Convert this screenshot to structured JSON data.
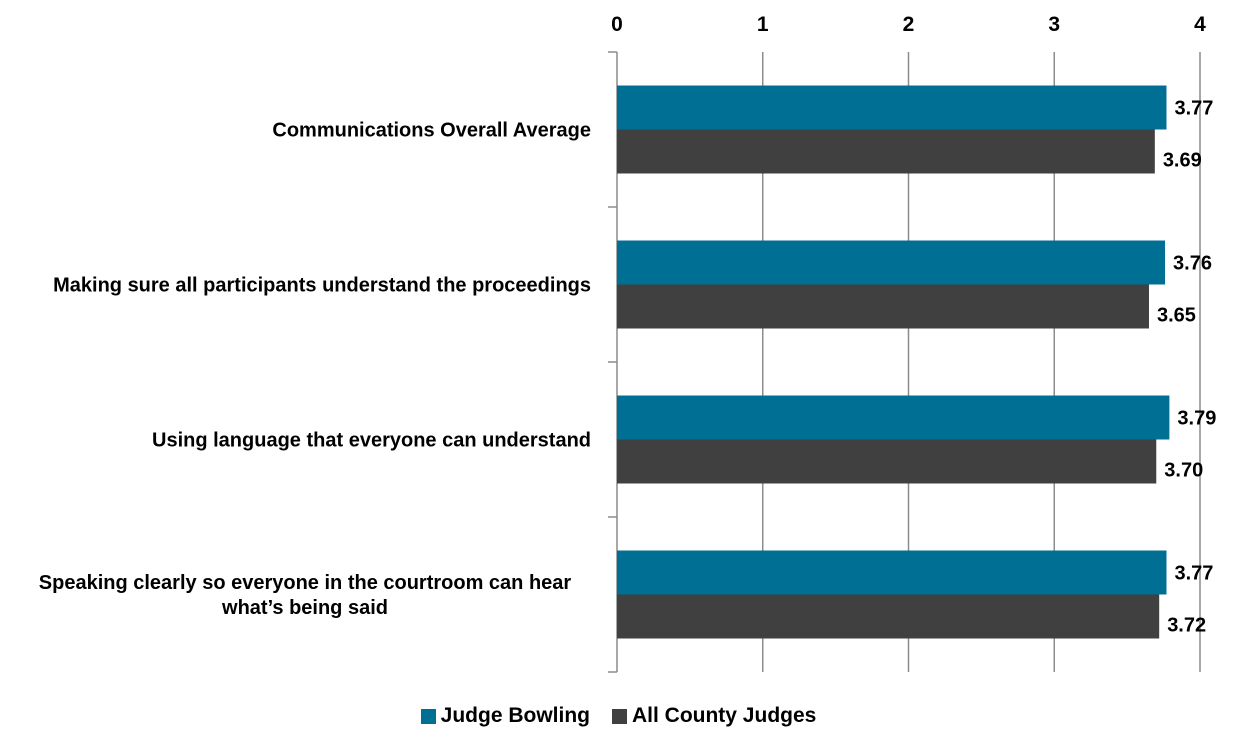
{
  "chart_data": {
    "type": "bar",
    "orientation": "horizontal",
    "categories": [
      [
        "Communications Overall Average"
      ],
      [
        "Making sure all participants understand the proceedings"
      ],
      [
        "Using language that everyone can understand"
      ],
      [
        "Speaking clearly so everyone in the courtroom can hear",
        "what’s being said"
      ]
    ],
    "series": [
      {
        "name": "Judge Bowling",
        "color": "#006f94",
        "values": [
          3.77,
          3.76,
          3.79,
          3.77
        ],
        "labels": [
          "3.77",
          "3.76",
          "3.79",
          "3.77"
        ]
      },
      {
        "name": "All County Judges",
        "color": "#404040",
        "values": [
          3.69,
          3.65,
          3.7,
          3.72
        ],
        "labels": [
          "3.69",
          "3.65",
          "3.70",
          "3.72"
        ]
      }
    ],
    "xlim": [
      0,
      4
    ],
    "xticks": [
      "0",
      "1",
      "2",
      "3",
      "4"
    ],
    "x_axis_position": "top",
    "grid": true,
    "legend_position": "bottom"
  }
}
